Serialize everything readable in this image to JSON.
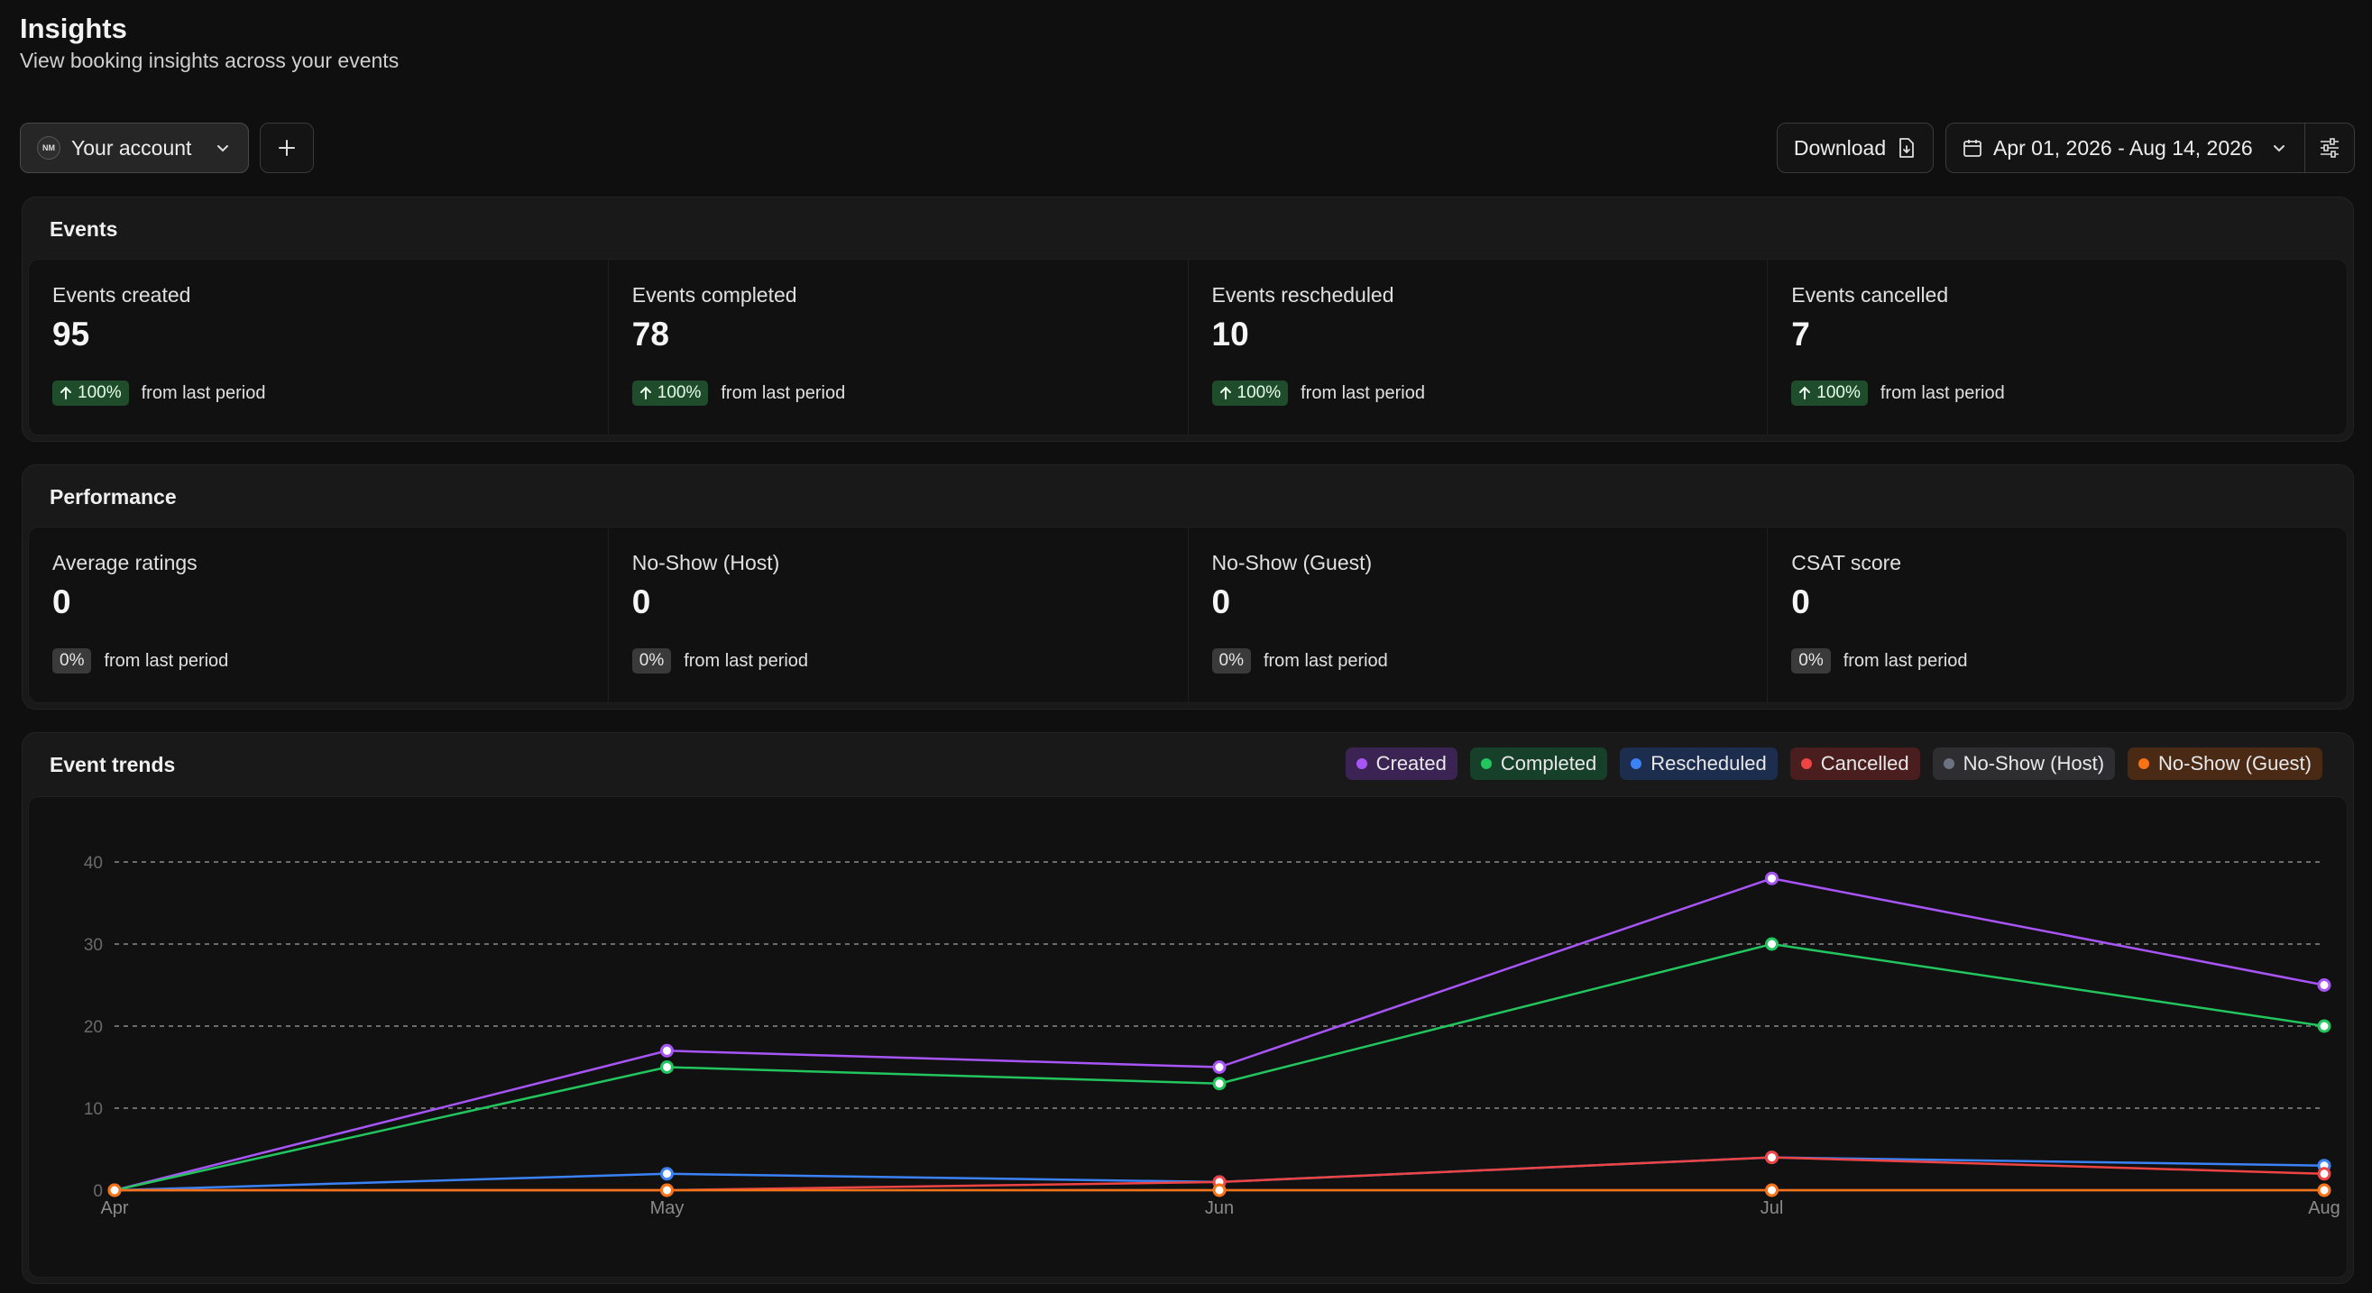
{
  "header": {
    "title": "Insights",
    "subtitle": "View booking insights across your events"
  },
  "toolbar": {
    "account_label": "Your account",
    "account_avatar": "NM",
    "add_icon": "plus-icon",
    "download_label": "Download",
    "download_icon": "file-download-icon",
    "date_range": "Apr 01, 2026 - Aug 14, 2026",
    "calendar_icon": "calendar-icon",
    "filter_icon": "sliders-icon"
  },
  "events": {
    "title": "Events",
    "delta_text": "from last period",
    "stats": [
      {
        "label": "Events created",
        "value": "95",
        "delta": "100%"
      },
      {
        "label": "Events completed",
        "value": "78",
        "delta": "100%"
      },
      {
        "label": "Events rescheduled",
        "value": "10",
        "delta": "100%"
      },
      {
        "label": "Events cancelled",
        "value": "7",
        "delta": "100%"
      }
    ]
  },
  "performance": {
    "title": "Performance",
    "delta_text": "from last period",
    "stats": [
      {
        "label": "Average ratings",
        "value": "0",
        "delta": "0%"
      },
      {
        "label": "No-Show (Host)",
        "value": "0",
        "delta": "0%"
      },
      {
        "label": "No-Show (Guest)",
        "value": "0",
        "delta": "0%"
      },
      {
        "label": "CSAT score",
        "value": "0",
        "delta": "0%"
      }
    ]
  },
  "trends": {
    "title": "Event trends"
  },
  "chart_data": {
    "type": "line",
    "title": "Event trends",
    "categories": [
      "Apr",
      "May",
      "Jun",
      "Jul",
      "Aug"
    ],
    "ylim": [
      0,
      40
    ],
    "yticks": [
      0,
      10,
      20,
      30,
      40
    ],
    "grid": true,
    "legend_position": "top-right",
    "series": [
      {
        "name": "Created",
        "color": "#a855f7",
        "pill_bg": "#3b2354",
        "values": [
          0,
          17,
          15,
          38,
          25
        ]
      },
      {
        "name": "Completed",
        "color": "#22c55e",
        "pill_bg": "#17402a",
        "values": [
          0,
          15,
          13,
          30,
          20
        ]
      },
      {
        "name": "Rescheduled",
        "color": "#3b82f6",
        "pill_bg": "#1d2d4d",
        "values": [
          0,
          2,
          1,
          4,
          3
        ]
      },
      {
        "name": "Cancelled",
        "color": "#ef4444",
        "pill_bg": "#4a1e1e",
        "values": [
          0,
          0,
          1,
          4,
          2
        ]
      },
      {
        "name": "No-Show (Host)",
        "color": "#6b7280",
        "pill_bg": "#2e2e30",
        "values": [
          0,
          0,
          0,
          0,
          0
        ]
      },
      {
        "name": "No-Show (Guest)",
        "color": "#f97316",
        "pill_bg": "#4a2a15",
        "values": [
          0,
          0,
          0,
          0,
          0
        ]
      }
    ]
  }
}
